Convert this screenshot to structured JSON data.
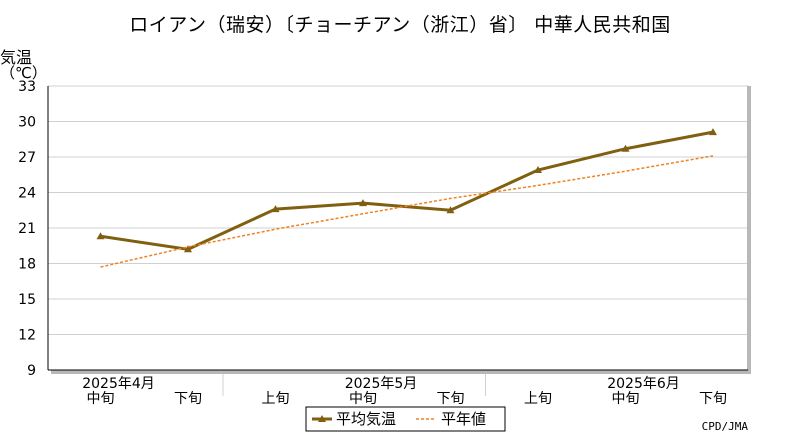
{
  "chart_data": {
    "type": "line",
    "title": "ロイアン（瑞安）〔チョーチアン（浙江）省〕 中華人民共和国",
    "ylabel": [
      "気温",
      "（℃）"
    ],
    "ylim": [
      9,
      33
    ],
    "yticks": [
      9,
      12,
      15,
      18,
      21,
      24,
      27,
      30,
      33
    ],
    "grid": true,
    "x_periods": [
      "中旬",
      "下旬",
      "上旬",
      "中旬",
      "下旬",
      "上旬",
      "中旬",
      "下旬"
    ],
    "x_months": [
      {
        "label": "2025年4月",
        "at": 0
      },
      {
        "label": "2025年5月",
        "at": 3
      },
      {
        "label": "2025年6月",
        "at": 6
      }
    ],
    "series": [
      {
        "name": "平均気温",
        "color": "#806010",
        "style": "solid-triangle",
        "values": [
          20.3,
          19.2,
          22.6,
          23.1,
          22.5,
          25.9,
          27.7,
          29.1
        ]
      },
      {
        "name": "平年値",
        "color": "#f08020",
        "style": "dotted",
        "values": [
          17.7,
          19.4,
          20.9,
          22.2,
          23.5,
          24.6,
          25.8,
          27.1
        ]
      }
    ],
    "legend_position": "bottom-center"
  },
  "credit": "CPD/JMA"
}
